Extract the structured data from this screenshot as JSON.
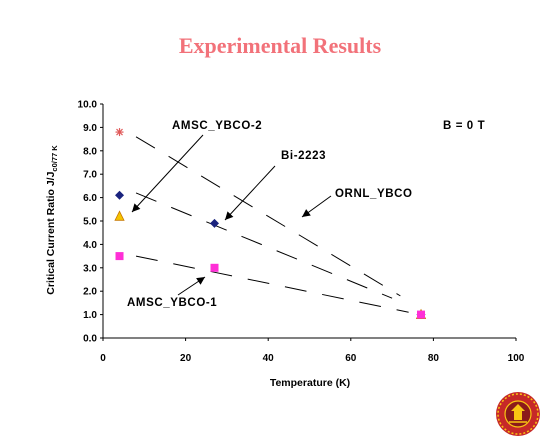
{
  "slide": {
    "title": "Experimental Results"
  },
  "chart_data": {
    "type": "scatter",
    "xlabel": "Temperature (K)",
    "ylabel": "Critical Current Ratio J/J",
    "ylabel_subscript": "c0/77 K",
    "xlim": [
      0,
      100
    ],
    "ylim": [
      0,
      10
    ],
    "xticks": [
      "0",
      "20",
      "40",
      "60",
      "80",
      "100"
    ],
    "yticks": [
      "0.0",
      "1.0",
      "2.0",
      "3.0",
      "4.0",
      "5.0",
      "6.0",
      "7.0",
      "8.0",
      "9.0",
      "10.0"
    ],
    "grid": false,
    "series": [
      {
        "name": "ORNL_YBCO",
        "marker": "asterisk",
        "color": "#e05a5a",
        "x": [
          4,
          77
        ],
        "y": [
          8.8,
          1.0
        ]
      },
      {
        "name": "Bi-2223",
        "marker": "diamond",
        "color": "#1a237e",
        "x": [
          4,
          27,
          77
        ],
        "y": [
          6.1,
          4.9,
          1.0
        ]
      },
      {
        "name": "AMSC_YBCO-2",
        "marker": "triangle",
        "color": "#f5c400",
        "x": [
          4,
          77
        ],
        "y": [
          5.2,
          1.0
        ]
      },
      {
        "name": "AMSC_YBCO-1",
        "marker": "square",
        "color": "#ff2fd6",
        "x": [
          4,
          27,
          77
        ],
        "y": [
          3.5,
          3.0,
          1.0
        ]
      }
    ],
    "annotations": [
      {
        "text": "AMSC_YBCO-2",
        "series": "AMSC_YBCO-2"
      },
      {
        "text": "Bi-2223",
        "series": "Bi-2223"
      },
      {
        "text": "ORNL_YBCO",
        "series": "ORNL_YBCO"
      },
      {
        "text": "AMSC_YBCO-1",
        "series": "AMSC_YBCO-1"
      },
      {
        "text": "B = 0 T",
        "series": null
      }
    ],
    "trend_lines": [
      {
        "series": "ORNL_YBCO",
        "x": [
          8,
          72
        ],
        "y": [
          8.6,
          1.8
        ]
      },
      {
        "series": "Bi-2223",
        "x": [
          8,
          70
        ],
        "y": [
          6.2,
          1.7
        ]
      },
      {
        "series": "AMSC_YBCO-1",
        "x": [
          8,
          74
        ],
        "y": [
          3.5,
          1.1
        ]
      }
    ]
  },
  "logo": {
    "name": "university-seal",
    "colors": [
      "#c62828",
      "#f9c513"
    ]
  }
}
